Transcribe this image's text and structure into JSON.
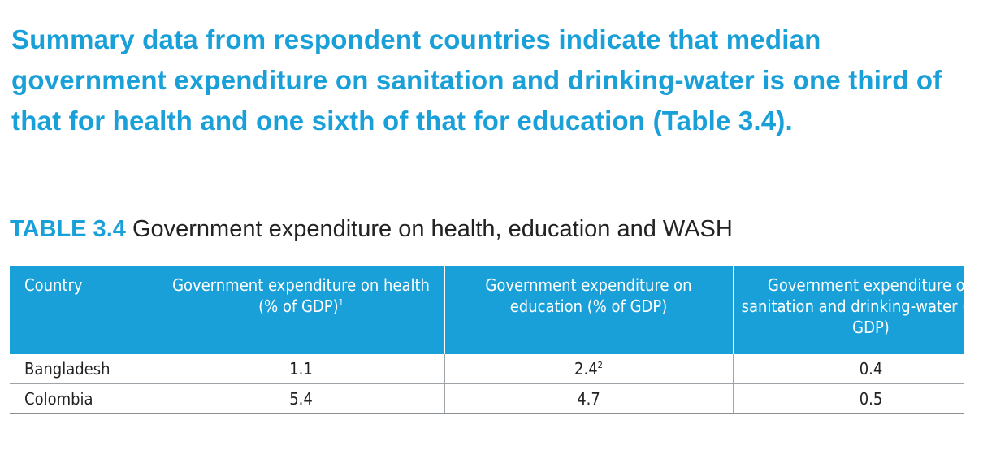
{
  "summary": {
    "text": "Summary data from respondent countries indicate that median government expenditure on sanitation and drinking-water is one third of that for health and one sixth of that for education (Table 3.4)."
  },
  "table": {
    "title_number": "TABLE 3.4",
    "title_text": "Government expenditure on health, education and WASH",
    "headers": [
      {
        "label": "Country",
        "note": ""
      },
      {
        "label": "Government expenditure on health (% of GDP)",
        "note": "1"
      },
      {
        "label": "Government expenditure on education (% of GDP)",
        "note": ""
      },
      {
        "label": "Government expenditure on sanitation and drinking-water (% of GDP)",
        "note": ""
      }
    ],
    "rows": [
      {
        "country": "Bangladesh",
        "health": "1.1",
        "education": "2.4",
        "education_note": "2",
        "wash": "0.4"
      },
      {
        "country": "Colombia",
        "health": "5.4",
        "education": "4.7",
        "education_note": "",
        "wash": "0.5"
      }
    ]
  }
}
